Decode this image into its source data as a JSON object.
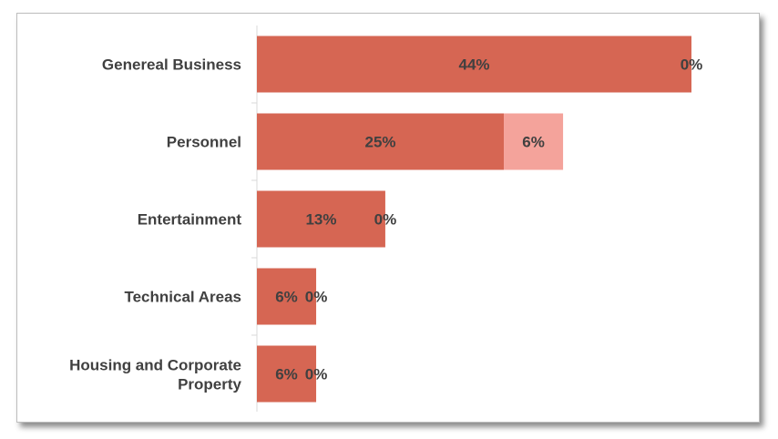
{
  "chart_data": {
    "type": "bar",
    "orientation": "horizontal",
    "stacked": true,
    "title": "",
    "xlabel": "",
    "ylabel": "",
    "xlim": [
      0,
      0.5
    ],
    "grid": false,
    "legend": "none",
    "categories": [
      "Genereal Business",
      "Personnel",
      "Entertainment",
      "Technical Areas",
      "Housing and Corporate Property"
    ],
    "series": [
      {
        "values": [
          0.44,
          0.25,
          0.13,
          0.06,
          0.06
        ],
        "labels": [
          "44%",
          "25%",
          "13%",
          "6%",
          "6%"
        ],
        "color": "#d66653"
      },
      {
        "values": [
          0.0,
          0.06,
          0.0,
          0.0,
          0.0
        ],
        "labels": [
          "0%",
          "6%",
          "0%",
          "0%",
          "0%"
        ],
        "color": "#f4a39b"
      }
    ]
  }
}
